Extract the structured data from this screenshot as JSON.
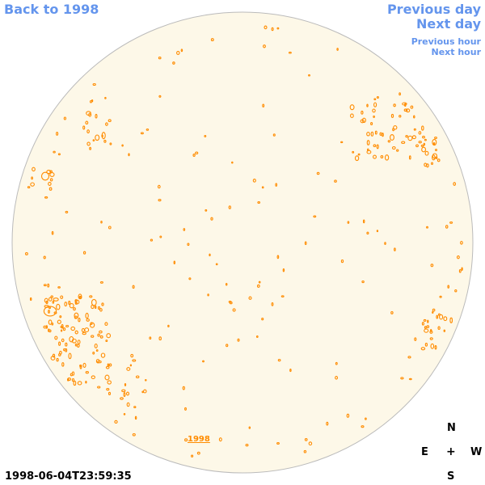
{
  "nav": {
    "back_label": "Back to 1998",
    "prev_day_label": "Previous day",
    "next_day_label": "Next day",
    "prev_hour_label": "Previous hour",
    "next_hour_label": "Next hour"
  },
  "disk": {
    "year_label": "1998",
    "timestamp": "1998-06-04T23:59:35"
  },
  "compass": {
    "north": "N",
    "east": "E",
    "center": "+",
    "west": "W",
    "south": "S"
  },
  "colors": {
    "link": "#6495ed",
    "disk_fill": "#fdf8e8",
    "disk_stroke": "#bbbbbb",
    "feature": "#ff8c00",
    "text": "#000000"
  }
}
